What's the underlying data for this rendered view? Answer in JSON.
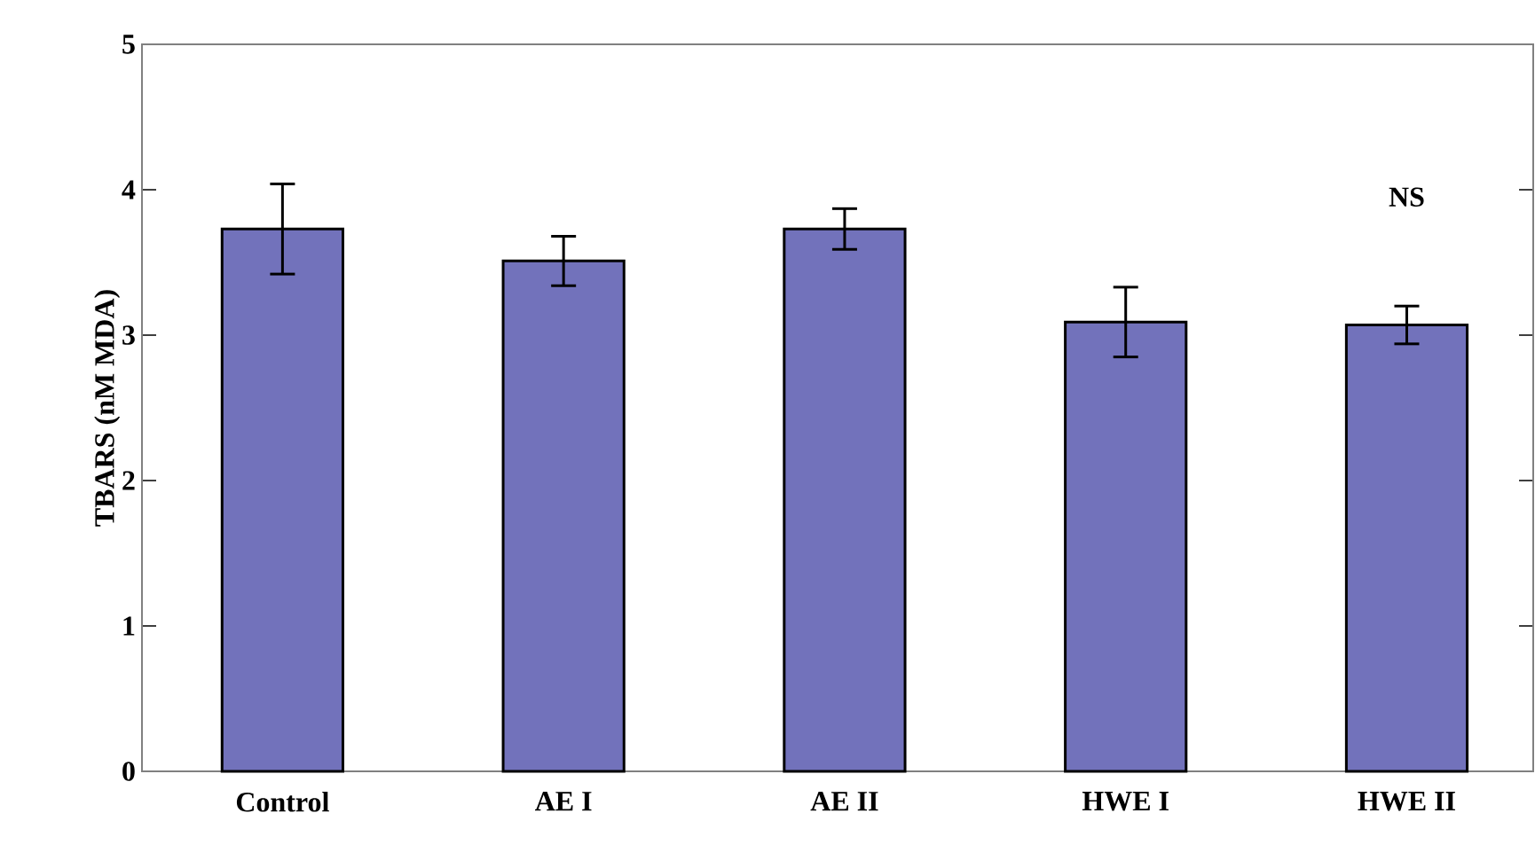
{
  "chart_data": {
    "type": "bar",
    "ylabel": "TBARS (nM MDA)",
    "categories": [
      "Control",
      "AE I",
      "AE II",
      "HWE I",
      "HWE II"
    ],
    "values": [
      3.73,
      3.51,
      3.73,
      3.09,
      3.07
    ],
    "errors": [
      0.31,
      0.17,
      0.14,
      0.24,
      0.13
    ],
    "color": "#7272bb",
    "ylim": [
      0,
      5
    ],
    "yticks": [
      0,
      1,
      2,
      3,
      4,
      5
    ],
    "annotations": [
      "NS"
    ]
  }
}
